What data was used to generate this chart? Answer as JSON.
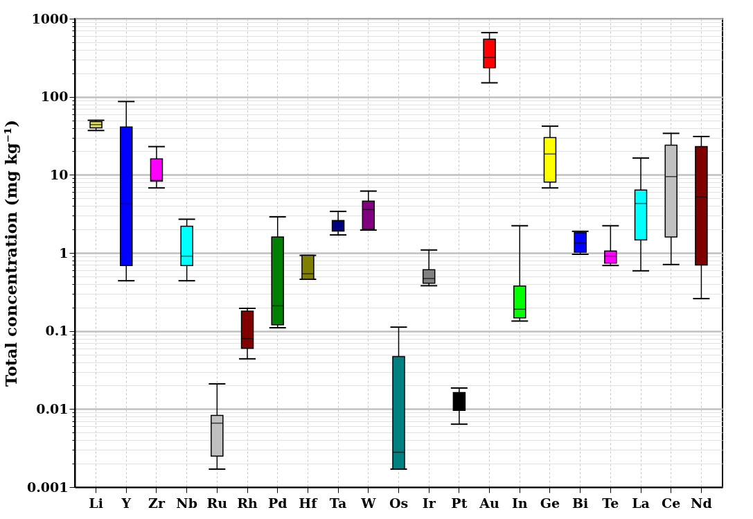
{
  "chart_data": {
    "type": "box",
    "ylabel": "Total concentration (mg kg⁻¹)",
    "categories": [
      "Li",
      "Y",
      "Zr",
      "Nb",
      "Ru",
      "Rh",
      "Pd",
      "Hf",
      "Ta",
      "W",
      "Os",
      "Ir",
      "Pt",
      "Au",
      "In",
      "Ge",
      "Bi",
      "Te",
      "La",
      "Ce",
      "Nd"
    ],
    "colors": [
      "#e0e060",
      "#0000ff",
      "#ff00ff",
      "#00ffff",
      "#c0c0c0",
      "#800000",
      "#008000",
      "#808000",
      "#000080",
      "#800080",
      "#008080",
      "#808080",
      "#000000",
      "#ff0000",
      "#00ff00",
      "#ffff00",
      "#0000ff",
      "#ff00ff",
      "#00ffff",
      "#c0c0c0",
      "#800000"
    ],
    "boxes": [
      {
        "low": 37,
        "q1": 40,
        "median": 44,
        "q3": 48,
        "high": 50
      },
      {
        "low": 0.44,
        "q1": 0.69,
        "median": 4.3,
        "q3": 41,
        "high": 87
      },
      {
        "low": 6.8,
        "q1": 8.3,
        "median": 8.5,
        "q3": 16,
        "high": 23
      },
      {
        "low": 0.44,
        "q1": 0.69,
        "median": 0.91,
        "q3": 2.2,
        "high": 2.7
      },
      {
        "low": 0.0017,
        "q1": 0.0025,
        "median": 0.0066,
        "q3": 0.0083,
        "high": 0.021
      },
      {
        "low": 0.044,
        "q1": 0.06,
        "median": 0.08,
        "q3": 0.18,
        "high": 0.195
      },
      {
        "low": 0.11,
        "q1": 0.12,
        "median": 0.21,
        "q3": 1.6,
        "high": 2.9
      },
      {
        "low": 0.46,
        "q1": 0.46,
        "median": 0.54,
        "q3": 0.93,
        "high": 0.93
      },
      {
        "low": 1.7,
        "q1": 1.9,
        "median": 1.95,
        "q3": 2.6,
        "high": 3.4
      },
      {
        "low": 1.96,
        "q1": 2.0,
        "median": 3.6,
        "q3": 4.6,
        "high": 6.2
      },
      {
        "low": 0.0017,
        "q1": 0.0017,
        "median": 0.0028,
        "q3": 0.047,
        "high": 0.112
      },
      {
        "low": 0.38,
        "q1": 0.41,
        "median": 0.47,
        "q3": 0.61,
        "high": 1.09
      },
      {
        "low": 0.0064,
        "q1": 0.0096,
        "median": 0.013,
        "q3": 0.0163,
        "high": 0.0186
      },
      {
        "low": 151,
        "q1": 236,
        "median": 320,
        "q3": 546,
        "high": 663
      },
      {
        "low": 0.134,
        "q1": 0.147,
        "median": 0.19,
        "q3": 0.376,
        "high": 2.23
      },
      {
        "low": 6.8,
        "q1": 8.1,
        "median": 18.5,
        "q3": 30,
        "high": 42
      },
      {
        "low": 0.96,
        "q1": 1.02,
        "median": 1.34,
        "q3": 1.82,
        "high": 1.89
      },
      {
        "low": 0.69,
        "q1": 0.74,
        "median": 0.91,
        "q3": 1.06,
        "high": 2.23
      },
      {
        "low": 0.59,
        "q1": 1.47,
        "median": 4.3,
        "q3": 6.4,
        "high": 16.4
      },
      {
        "low": 0.71,
        "q1": 1.6,
        "median": 9.5,
        "q3": 24,
        "high": 34
      },
      {
        "low": 0.26,
        "q1": 0.7,
        "median": 5.2,
        "q3": 23,
        "high": 31
      }
    ],
    "log": true,
    "ylim": [
      0.001,
      1000
    ],
    "yticks": [
      0.001,
      {
        "value": 0.002,
        "label": null
      },
      {
        "value": 0.003,
        "label": null
      },
      {
        "value": 0.004,
        "label": null
      },
      {
        "value": 0.005,
        "label": null
      },
      {
        "value": 0.006,
        "label": null
      },
      {
        "value": 0.007,
        "label": null
      },
      {
        "value": 0.008,
        "label": null
      },
      {
        "value": 0.009,
        "label": null
      },
      0.01,
      {
        "value": 0.02,
        "label": null
      },
      {
        "value": 0.03,
        "label": null
      },
      {
        "value": 0.04,
        "label": null
      },
      {
        "value": 0.05,
        "label": null
      },
      {
        "value": 0.06,
        "label": null
      },
      {
        "value": 0.07,
        "label": null
      },
      {
        "value": 0.08,
        "label": null
      },
      {
        "value": 0.09,
        "label": null
      },
      0.1,
      {
        "value": 0.2,
        "label": null
      },
      {
        "value": 0.3,
        "label": null
      },
      {
        "value": 0.4,
        "label": null
      },
      {
        "value": 0.5,
        "label": null
      },
      {
        "value": 0.6,
        "label": null
      },
      {
        "value": 0.7,
        "label": null
      },
      {
        "value": 0.8,
        "label": null
      },
      {
        "value": 0.9,
        "label": null
      },
      1,
      {
        "value": 2,
        "label": null
      },
      {
        "value": 3,
        "label": null
      },
      {
        "value": 4,
        "label": null
      },
      {
        "value": 5,
        "label": null
      },
      {
        "value": 6,
        "label": null
      },
      {
        "value": 7,
        "label": null
      },
      {
        "value": 8,
        "label": null
      },
      {
        "value": 9,
        "label": null
      },
      10,
      {
        "value": 20,
        "label": null
      },
      {
        "value": 30,
        "label": null
      },
      {
        "value": 40,
        "label": null
      },
      {
        "value": 50,
        "label": null
      },
      {
        "value": 60,
        "label": null
      },
      {
        "value": 70,
        "label": null
      },
      {
        "value": 80,
        "label": null
      },
      {
        "value": 90,
        "label": null
      },
      100,
      {
        "value": 200,
        "label": null
      },
      {
        "value": 300,
        "label": null
      },
      {
        "value": 400,
        "label": null
      },
      {
        "value": 500,
        "label": null
      },
      {
        "value": 600,
        "label": null
      },
      {
        "value": 700,
        "label": null
      },
      {
        "value": 800,
        "label": null
      },
      {
        "value": 900,
        "label": null
      },
      1000
    ],
    "grid": true
  }
}
